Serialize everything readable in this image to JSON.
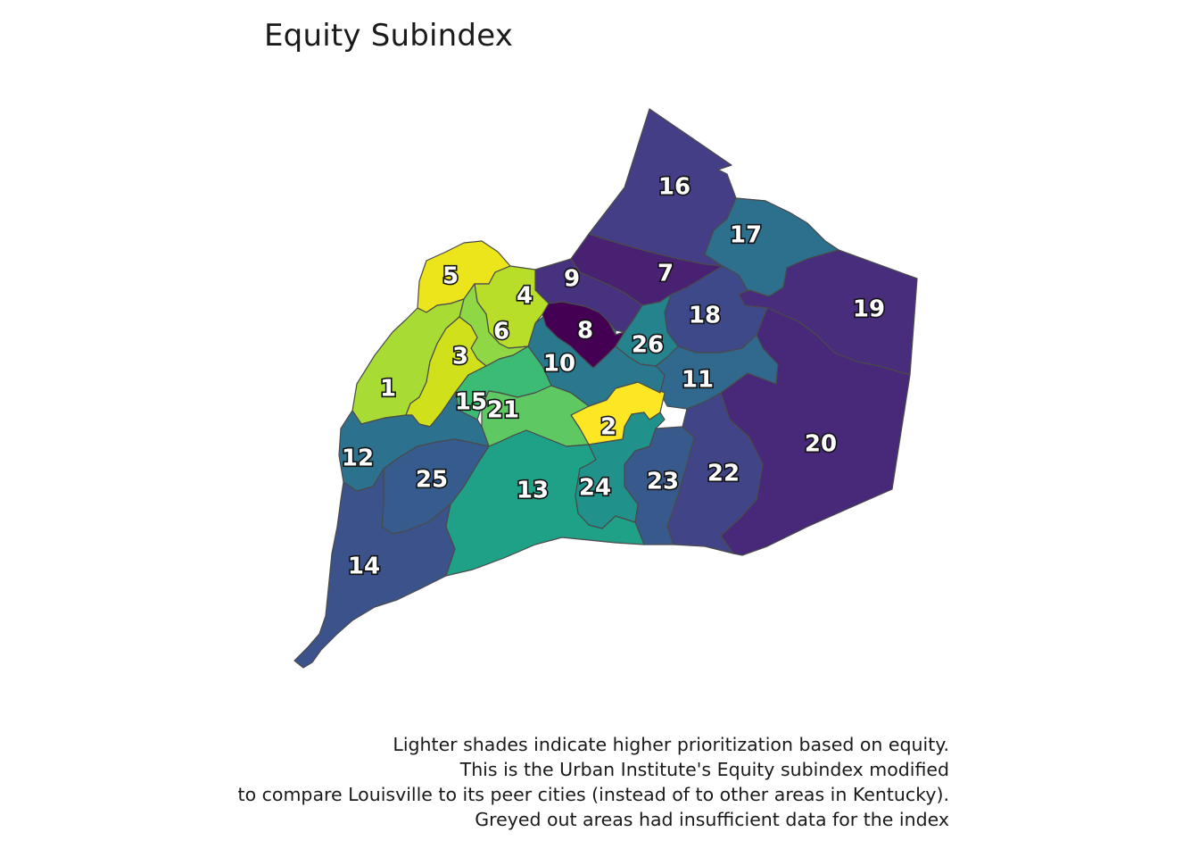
{
  "title": "Equity Subindex",
  "caption_lines": [
    "Lighter shades indicate higher prioritization based on equity.",
    "This is the Urban Institute's Equity subindex modified",
    "to compare Louisville to its peer cities (instead of to other areas in Kentucky).",
    "Greyed out areas had insufficient data for the index"
  ],
  "districts": [
    {
      "id": "1",
      "label": "1",
      "color": "#a8db34"
    },
    {
      "id": "2",
      "label": "2",
      "color": "#fde725"
    },
    {
      "id": "3",
      "label": "3",
      "color": "#d0e11c"
    },
    {
      "id": "4",
      "label": "4",
      "color": "#b8de29"
    },
    {
      "id": "5",
      "label": "5",
      "color": "#ece51b"
    },
    {
      "id": "6",
      "label": "6",
      "color": "#8fd744"
    },
    {
      "id": "7",
      "label": "7",
      "color": "#482173"
    },
    {
      "id": "8",
      "label": "8",
      "color": "#440154"
    },
    {
      "id": "9",
      "label": "9",
      "color": "#46327e"
    },
    {
      "id": "10",
      "label": "10",
      "color": "#2a788e"
    },
    {
      "id": "11",
      "label": "11",
      "color": "#31688e"
    },
    {
      "id": "12",
      "label": "12",
      "color": "#2c728e"
    },
    {
      "id": "13",
      "label": "13",
      "color": "#1fa187"
    },
    {
      "id": "14",
      "label": "14",
      "color": "#3b528b"
    },
    {
      "id": "15",
      "label": "15",
      "color": "#3cbb75"
    },
    {
      "id": "16",
      "label": "16",
      "color": "#433e85"
    },
    {
      "id": "17",
      "label": "17",
      "color": "#2d708e"
    },
    {
      "id": "18",
      "label": "18",
      "color": "#3e4989"
    },
    {
      "id": "19",
      "label": "19",
      "color": "#472d7b"
    },
    {
      "id": "20",
      "label": "20",
      "color": "#482878"
    },
    {
      "id": "21",
      "label": "21",
      "color": "#5ec962"
    },
    {
      "id": "22",
      "label": "22",
      "color": "#414487"
    },
    {
      "id": "23",
      "label": "23",
      "color": "#38598c"
    },
    {
      "id": "24",
      "label": "24",
      "color": "#21918c"
    },
    {
      "id": "25",
      "label": "25",
      "color": "#365c8d"
    },
    {
      "id": "26",
      "label": "26",
      "color": "#25838e"
    }
  ]
}
